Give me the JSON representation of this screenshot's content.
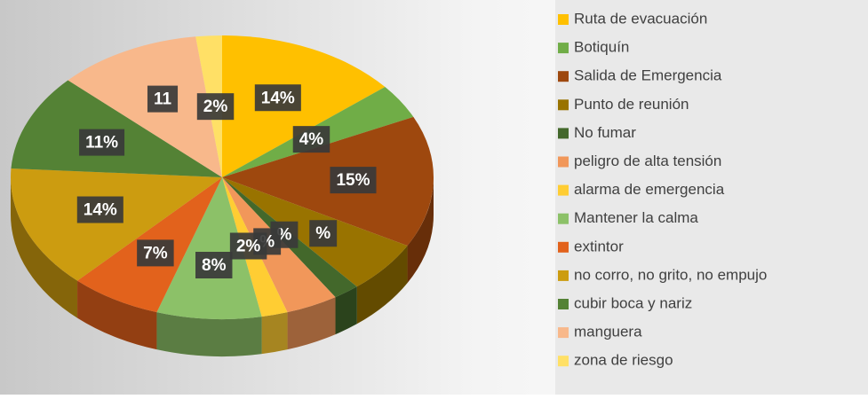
{
  "chart_data": {
    "type": "pie",
    "categories": [
      "Ruta de evacuación",
      "Botiquín",
      "Salida de Emergencia",
      "Punto de reunión",
      "No fumar",
      "peligro de alta tensión",
      "alarma de emergencia",
      "Mantener la calma",
      "extintor",
      "no corro, no grito, no empujo",
      "cubir boca y nariz",
      "manguera",
      "zona de riesgo"
    ],
    "values": [
      14,
      4,
      15,
      6,
      2,
      4,
      2,
      8,
      7,
      14,
      11,
      11,
      2
    ],
    "value_labels": [
      "14%",
      "4%",
      "15%",
      "%",
      "%",
      "%",
      "2%",
      "8%",
      "7%",
      "14%",
      "11%",
      "11",
      "2%"
    ],
    "colors": [
      "#ffc000",
      "#70ad47",
      "#9e480e",
      "#997300",
      "#43682b",
      "#f1975a",
      "#ffcd33",
      "#8cc168",
      "#e2621c",
      "#cc9c10",
      "#548235",
      "#f8b88b",
      "#ffe066"
    ]
  }
}
